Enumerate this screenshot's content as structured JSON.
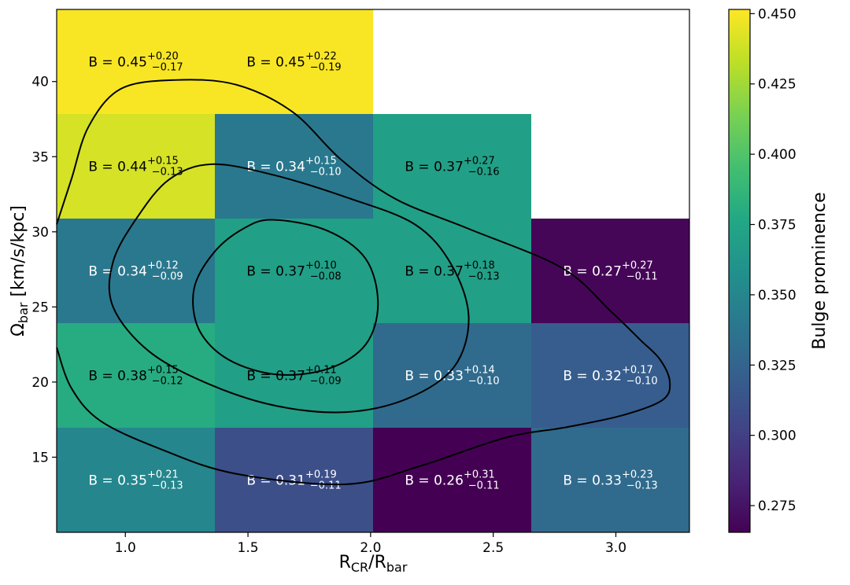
{
  "chart_data": {
    "type": "heatmap",
    "xlabel": {
      "main": "R",
      "sub1": "CR",
      "sep": "/R",
      "sub2": "bar"
    },
    "ylabel": {
      "main": "Ω",
      "sub": "bar",
      "unit": " [km/s/kpc]"
    },
    "colorbar_label": "Bulge prominence",
    "xlim": [
      0.72,
      3.3
    ],
    "ylim": [
      10,
      44.8
    ],
    "x_ticks": [
      1.0,
      1.5,
      2.0,
      2.5,
      3.0
    ],
    "x_tick_labels": [
      "1.0",
      "1.5",
      "2.0",
      "2.5",
      "3.0"
    ],
    "y_ticks": [
      15,
      20,
      25,
      30,
      35,
      40
    ],
    "y_tick_labels": [
      "15",
      "20",
      "25",
      "30",
      "35",
      "40"
    ],
    "colorbar_range": [
      0.2655,
      0.4515
    ],
    "colorbar_ticks": [
      0.275,
      0.3,
      0.325,
      0.35,
      0.375,
      0.4,
      0.425,
      0.45
    ],
    "colorbar_tick_labels": [
      "0.275",
      "0.300",
      "0.325",
      "0.350",
      "0.375",
      "0.400",
      "0.425",
      "0.450"
    ],
    "colormap": "viridis",
    "x_bin_edges": [
      0.72,
      1.365,
      2.01,
      2.655,
      3.3
    ],
    "y_bin_edges": [
      10,
      16.96,
      23.92,
      30.88,
      37.84,
      44.8
    ],
    "label_prefix": "B = ",
    "cells": [
      {
        "col": 0,
        "row": 0,
        "value": 0.35,
        "text": "0.35",
        "plus": "+0.21",
        "minus": "−0.13",
        "text_color": "#ffffff"
      },
      {
        "col": 1,
        "row": 0,
        "value": 0.31,
        "text": "0.31",
        "plus": "+0.19",
        "minus": "−0.11",
        "text_color": "#ffffff"
      },
      {
        "col": 2,
        "row": 0,
        "value": 0.265,
        "text": "0.26",
        "plus": "+0.31",
        "minus": "−0.11",
        "text_color": "#ffffff"
      },
      {
        "col": 3,
        "row": 0,
        "value": 0.33,
        "text": "0.33",
        "plus": "+0.23",
        "minus": "−0.13",
        "text_color": "#ffffff"
      },
      {
        "col": 0,
        "row": 1,
        "value": 0.38,
        "text": "0.38",
        "plus": "+0.15",
        "minus": "−0.12",
        "text_color": "#000000"
      },
      {
        "col": 1,
        "row": 1,
        "value": 0.37,
        "text": "0.37",
        "plus": "+0.11",
        "minus": "−0.09",
        "text_color": "#000000"
      },
      {
        "col": 2,
        "row": 1,
        "value": 0.33,
        "text": "0.33",
        "plus": "+0.14",
        "minus": "−0.10",
        "text_color": "#ffffff"
      },
      {
        "col": 3,
        "row": 1,
        "value": 0.32,
        "text": "0.32",
        "plus": "+0.17",
        "minus": "−0.10",
        "text_color": "#ffffff"
      },
      {
        "col": 0,
        "row": 2,
        "value": 0.34,
        "text": "0.34",
        "plus": "+0.12",
        "minus": "−0.09",
        "text_color": "#ffffff"
      },
      {
        "col": 1,
        "row": 2,
        "value": 0.37,
        "text": "0.37",
        "plus": "+0.10",
        "minus": "−0.08",
        "text_color": "#000000"
      },
      {
        "col": 2,
        "row": 2,
        "value": 0.37,
        "text": "0.37",
        "plus": "+0.18",
        "minus": "−0.13",
        "text_color": "#000000"
      },
      {
        "col": 3,
        "row": 2,
        "value": 0.268,
        "text": "0.27",
        "plus": "+0.27",
        "minus": "−0.11",
        "text_color": "#ffffff"
      },
      {
        "col": 0,
        "row": 3,
        "value": 0.44,
        "text": "0.44",
        "plus": "+0.15",
        "minus": "−0.13",
        "text_color": "#000000"
      },
      {
        "col": 1,
        "row": 3,
        "value": 0.34,
        "text": "0.34",
        "plus": "+0.15",
        "minus": "−0.10",
        "text_color": "#ffffff"
      },
      {
        "col": 2,
        "row": 3,
        "value": 0.37,
        "text": "0.37",
        "plus": "+0.27",
        "minus": "−0.16",
        "text_color": "#000000"
      },
      {
        "col": 0,
        "row": 4,
        "value": 0.45,
        "text": "0.45",
        "plus": "+0.20",
        "minus": "−0.17",
        "text_color": "#000000"
      },
      {
        "col": 1,
        "row": 4,
        "value": 0.45,
        "text": "0.45",
        "plus": "+0.22",
        "minus": "−0.19",
        "text_color": "#000000"
      }
    ],
    "contours": [
      {
        "name": "",
        "points": [
          [
            1.6,
            30.8
          ],
          [
            1.82,
            30.1
          ],
          [
            1.98,
            28.2
          ],
          [
            2.03,
            25.2
          ],
          [
            1.98,
            22.5
          ],
          [
            1.83,
            20.9
          ],
          [
            1.62,
            20.5
          ],
          [
            1.42,
            21.5
          ],
          [
            1.3,
            23.5
          ],
          [
            1.28,
            26.2
          ],
          [
            1.36,
            28.6
          ],
          [
            1.48,
            30.2
          ]
        ]
      },
      {
        "name": "",
        "points": [
          [
            1.35,
            34.5
          ],
          [
            1.6,
            33.8
          ],
          [
            1.9,
            32.3
          ],
          [
            2.18,
            30.5
          ],
          [
            2.33,
            27.8
          ],
          [
            2.4,
            24.3
          ],
          [
            2.34,
            21.0
          ],
          [
            2.15,
            18.9
          ],
          [
            1.9,
            18.0
          ],
          [
            1.62,
            18.4
          ],
          [
            1.35,
            19.8
          ],
          [
            1.1,
            22.0
          ],
          [
            0.95,
            25.0
          ],
          [
            0.95,
            28.0
          ],
          [
            1.05,
            31.0
          ],
          [
            1.18,
            33.5
          ]
        ]
      },
      {
        "name": "",
        "points": [
          [
            0.72,
            30.5
          ],
          [
            0.78,
            33.5
          ],
          [
            0.85,
            37.0
          ],
          [
            0.98,
            39.5
          ],
          [
            1.2,
            40.1
          ],
          [
            1.45,
            39.8
          ],
          [
            1.68,
            38.0
          ],
          [
            1.88,
            34.8
          ],
          [
            2.1,
            32.2
          ],
          [
            2.4,
            30.2
          ],
          [
            2.78,
            27.6
          ],
          [
            2.98,
            24.7
          ],
          [
            3.1,
            22.8
          ],
          [
            3.18,
            21.5
          ],
          [
            3.22,
            20.0
          ],
          [
            3.19,
            18.8
          ],
          [
            3.03,
            17.8
          ],
          [
            2.8,
            17.0
          ],
          [
            2.55,
            16.3
          ],
          [
            2.2,
            14.4
          ],
          [
            1.9,
            13.2
          ],
          [
            1.45,
            13.9
          ],
          [
            1.15,
            15.5
          ],
          [
            0.9,
            17.4
          ],
          [
            0.78,
            19.6
          ],
          [
            0.72,
            22.3
          ]
        ],
        "open": true
      }
    ]
  }
}
